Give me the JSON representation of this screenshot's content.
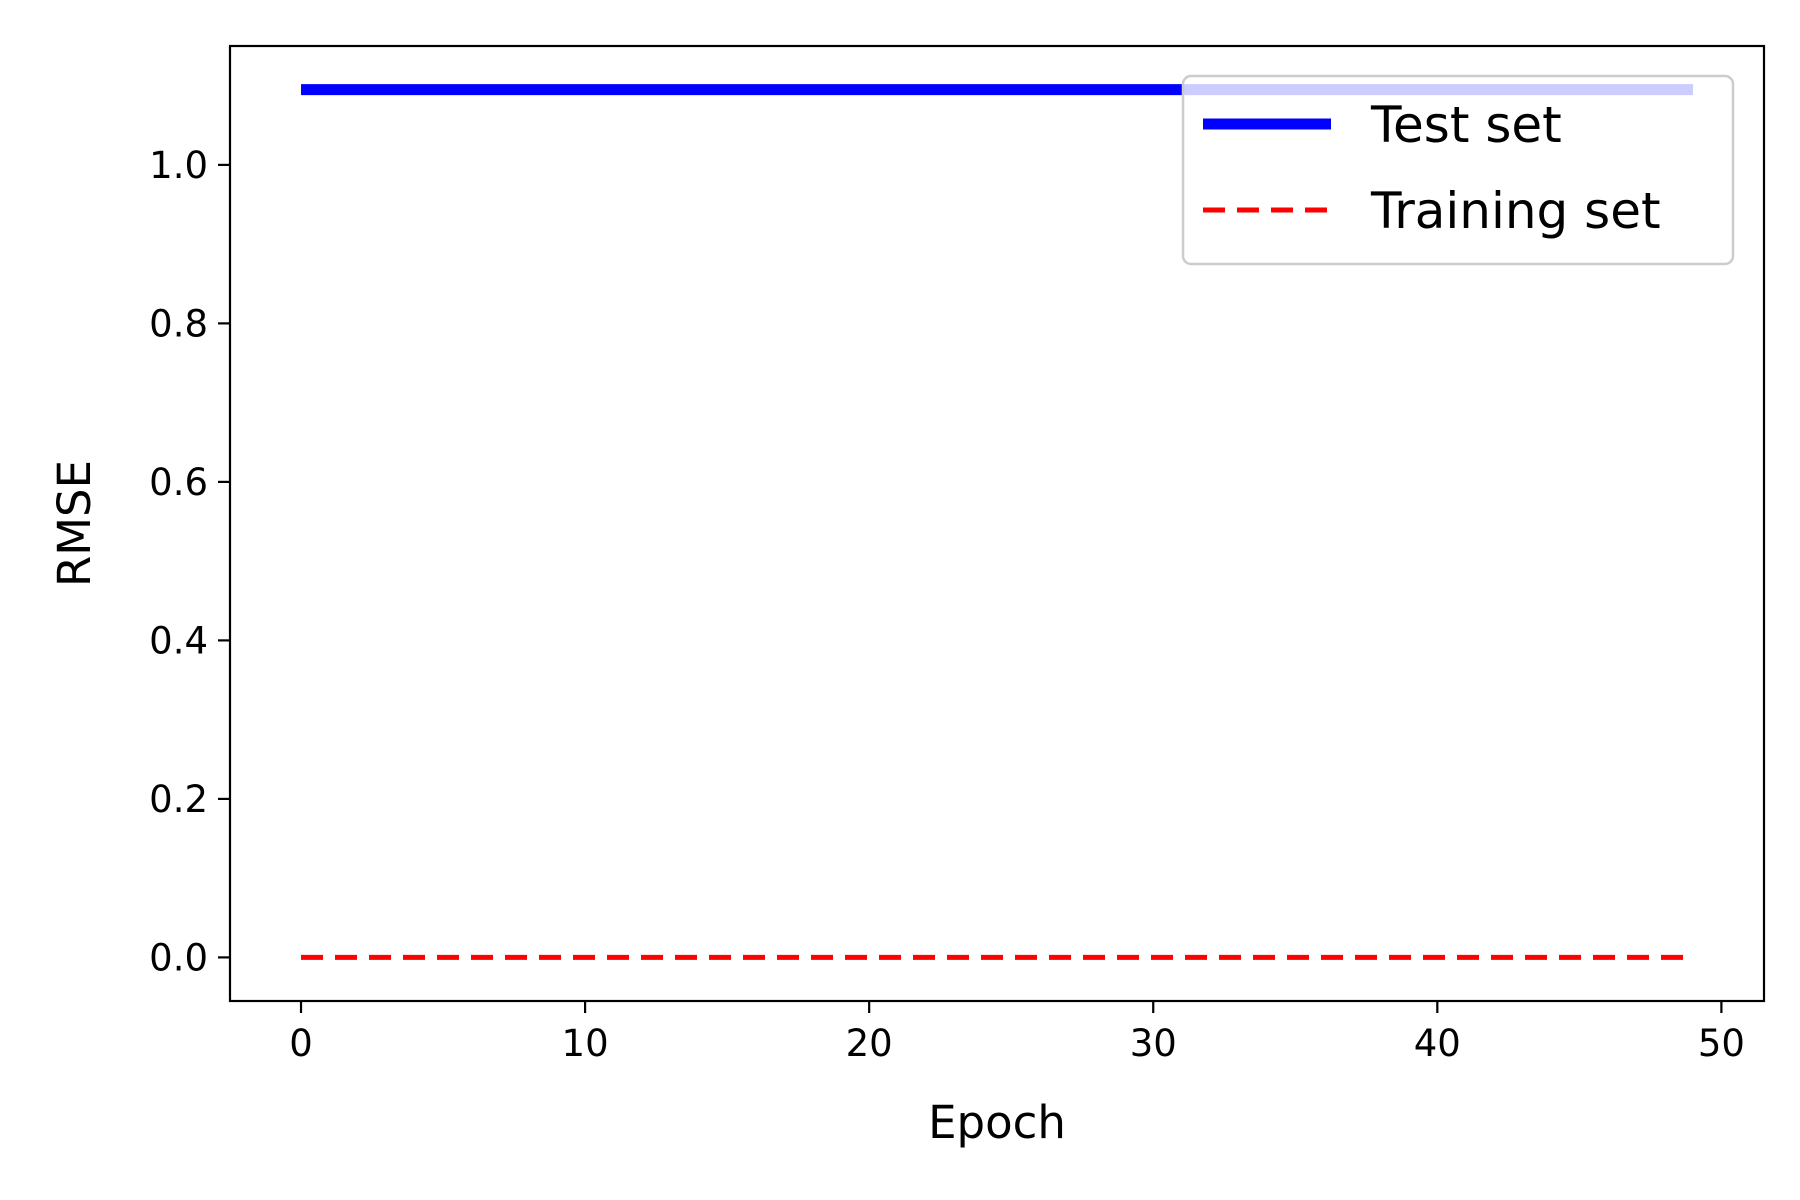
{
  "chart_data": {
    "type": "line",
    "title": "",
    "xlabel": "Epoch",
    "ylabel": "RMSE",
    "xlim": [
      -2.5,
      51.5
    ],
    "ylim": [
      -0.055,
      1.15
    ],
    "x_ticks": [
      0,
      10,
      20,
      30,
      40,
      50
    ],
    "x_tick_labels": [
      "0",
      "10",
      "20",
      "30",
      "40",
      "50"
    ],
    "y_ticks": [
      0.0,
      0.2,
      0.4,
      0.6,
      0.8,
      1.0
    ],
    "y_tick_labels": [
      "0.0",
      "0.2",
      "0.4",
      "0.6",
      "0.8",
      "1.0"
    ],
    "grid": false,
    "legend_position": "top-right",
    "series": [
      {
        "name": "Test set",
        "color": "#0000ff",
        "style": "solid",
        "x": [
          0,
          49
        ],
        "y": [
          1.095,
          1.095
        ]
      },
      {
        "name": "Training set",
        "color": "#ff0000",
        "style": "dashed",
        "x": [
          0,
          49
        ],
        "y": [
          0.0,
          0.0
        ]
      }
    ]
  }
}
